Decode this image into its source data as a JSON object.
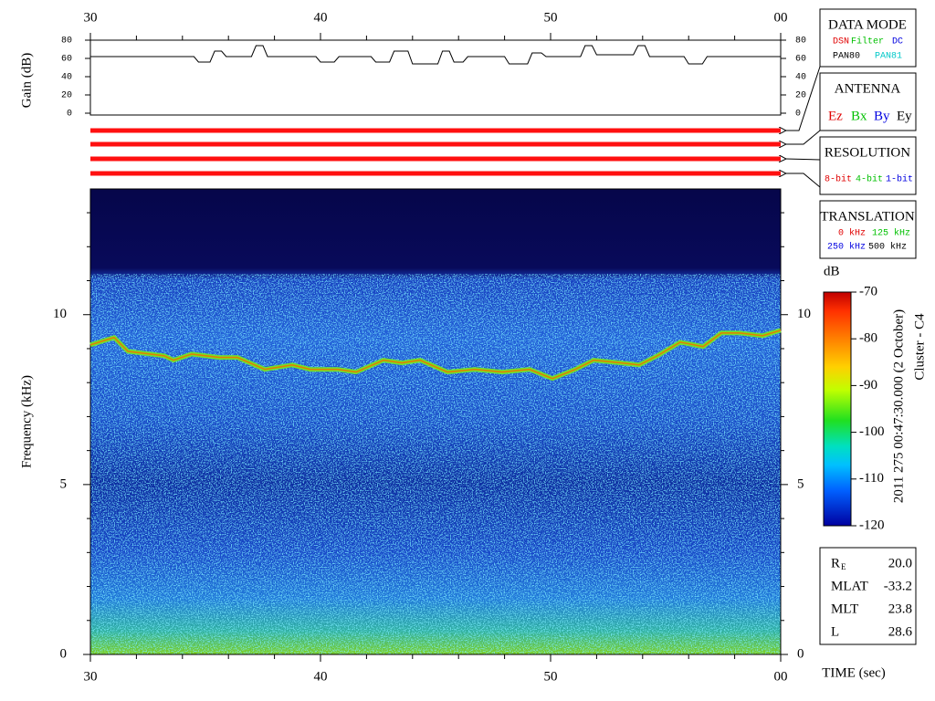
{
  "chart_data": [
    {
      "type": "line",
      "ylabel": "Gain (dB)",
      "color": "#000000",
      "x": [
        30,
        34.5,
        34.7,
        35.2,
        35.4,
        35.7,
        35.9,
        37.0,
        37.2,
        37.5,
        37.7,
        39.8,
        40.0,
        40.6,
        40.8,
        42.2,
        42.4,
        43.0,
        43.2,
        43.8,
        44.0,
        45.1,
        45.3,
        45.6,
        45.8,
        46.2,
        46.4,
        48.0,
        48.2,
        49.0,
        49.2,
        49.6,
        49.8,
        51.3,
        51.5,
        51.8,
        52.0,
        53.6,
        53.8,
        54.1,
        54.3,
        55.8,
        56.0,
        56.6,
        56.8,
        60
      ],
      "values": [
        62,
        62,
        56,
        56,
        68,
        68,
        62,
        62,
        74,
        74,
        62,
        62,
        56,
        56,
        62,
        62,
        56,
        56,
        68,
        68,
        54,
        54,
        68,
        68,
        56,
        56,
        62,
        62,
        54,
        54,
        66,
        66,
        62,
        62,
        74,
        74,
        64,
        64,
        74,
        74,
        62,
        62,
        54,
        54,
        62,
        62
      ],
      "xlim": [
        30,
        60
      ],
      "xticks": [
        30,
        40,
        50,
        {
          "value": 60,
          "label": "00"
        }
      ],
      "xminorticks": [
        32,
        34,
        36,
        38,
        42,
        44,
        46,
        48,
        52,
        54,
        56,
        58
      ],
      "ylim": [
        0,
        80
      ],
      "yticks": [
        0,
        20,
        40,
        60,
        80
      ]
    },
    {
      "type": "spectrogram",
      "xlabel": "TIME (sec)",
      "ylabel": "Frequency (kHz)",
      "x": [
        30,
        31.03,
        31.63,
        33.21,
        33.61,
        34.4,
        35.6,
        36.39,
        37.58,
        38.77,
        39.56,
        40.75,
        41.55,
        42.74,
        43.53,
        44.33,
        45.52,
        46.71,
        47.9,
        49.09,
        50.08,
        51.07,
        51.87,
        53.06,
        53.85,
        54.64,
        55.63,
        56.63,
        57.42,
        58.21,
        59.21,
        60
      ],
      "values": [
        9.11,
        9.33,
        8.92,
        8.79,
        8.66,
        8.84,
        8.74,
        8.74,
        8.39,
        8.52,
        8.39,
        8.39,
        8.31,
        8.66,
        8.58,
        8.66,
        8.31,
        8.39,
        8.31,
        8.39,
        8.12,
        8.39,
        8.66,
        8.58,
        8.52,
        8.79,
        9.19,
        9.06,
        9.46,
        9.46,
        9.38,
        9.54
      ],
      "color": "#e08000",
      "xlim": [
        30,
        60
      ],
      "xticks": [
        30,
        40,
        50,
        {
          "value": 60,
          "label": "00"
        }
      ],
      "xminorticks": [
        32,
        34,
        36,
        38,
        42,
        44,
        46,
        48,
        52,
        54,
        56,
        58
      ],
      "ylim": [
        0,
        13.7
      ],
      "yticks": [
        0,
        5,
        10
      ],
      "yminorticks": [
        1,
        2,
        3,
        4,
        6,
        7,
        8,
        9,
        11,
        12,
        13
      ],
      "clabel": "dB",
      "clim": [
        -120,
        -70
      ],
      "cticks": [
        -70,
        -80,
        -90,
        -100,
        -110,
        -120
      ]
    }
  ],
  "annotations": [
    "2011 275 00:47:30.000 (2 October)",
    "Cluster - C4"
  ],
  "side_panels": [
    {
      "title": "DATA MODE",
      "items": [
        {
          "text": "DSN",
          "color": "#e00000"
        },
        {
          "text": "Filter",
          "color": "#00c000"
        },
        {
          "text": "DC",
          "color": "#0000e0"
        },
        {
          "text": "PAN80",
          "color": "#000000"
        },
        {
          "text": "PAN81",
          "color": "#00c8c8"
        }
      ]
    },
    {
      "title": "ANTENNA",
      "items": [
        {
          "text": "Ez",
          "color": "#e00000"
        },
        {
          "text": "Bx",
          "color": "#00c000"
        },
        {
          "text": "By",
          "color": "#0000e0"
        },
        {
          "text": "Ey",
          "color": "#000000"
        }
      ]
    },
    {
      "title": "RESOLUTION",
      "items": [
        {
          "text": "8-bit",
          "color": "#e00000"
        },
        {
          "text": "4-bit",
          "color": "#00c000"
        },
        {
          "text": "1-bit",
          "color": "#0000e0"
        }
      ]
    },
    {
      "title": "TRANSLATION",
      "items": [
        {
          "text": "0 kHz",
          "color": "#e00000"
        },
        {
          "text": "125 kHz",
          "color": "#00c000"
        },
        {
          "text": "250 kHz",
          "color": "#0000e0"
        },
        {
          "text": "500 kHz",
          "color": "#000000"
        }
      ]
    }
  ],
  "orbit_info": [
    {
      "label": "R",
      "subscript": "E",
      "value": "20.0"
    },
    {
      "label": "MLAT",
      "value": "-33.2"
    },
    {
      "label": "MLT",
      "value": "23.8"
    },
    {
      "label": "L",
      "value": "28.6"
    }
  ]
}
